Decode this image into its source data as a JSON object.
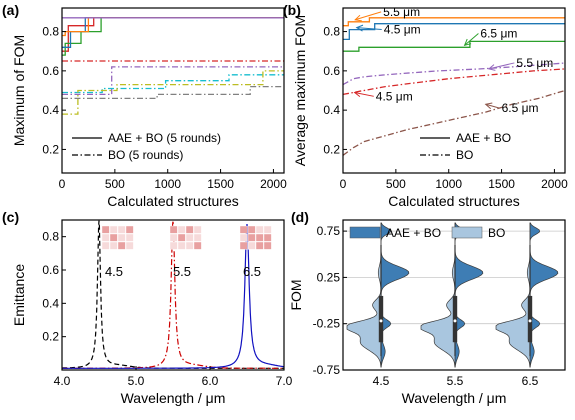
{
  "chart_data": [
    {
      "panel": "(a)",
      "type": "line",
      "ylabel": "Maximum of FOM",
      "xlabel": "Calculated structures",
      "xlim": [
        0,
        2100
      ],
      "ylim": [
        0.08,
        0.92
      ],
      "xticks": [
        0,
        500,
        1000,
        1500,
        2000
      ],
      "yticks": [
        0.2,
        0.4,
        0.6,
        0.8
      ],
      "legend": [
        {
          "label": "AAE + BO (5 rounds)",
          "style": "solid"
        },
        {
          "label": "BO (5 rounds)",
          "style": "dashdot"
        }
      ],
      "series": [
        {
          "color": "#d62728",
          "style": "solid",
          "x": [
            0,
            60,
            60,
            300,
            300,
            2100
          ],
          "y": [
            0.7,
            0.7,
            0.83,
            0.83,
            0.87,
            0.87
          ]
        },
        {
          "color": "#2ca02c",
          "style": "solid",
          "x": [
            0,
            30,
            30,
            180,
            180,
            370,
            370,
            2100
          ],
          "y": [
            0.68,
            0.68,
            0.74,
            0.74,
            0.8,
            0.8,
            0.87,
            0.87
          ]
        },
        {
          "color": "#1f77b4",
          "style": "solid",
          "x": [
            0,
            80,
            80,
            220,
            220,
            2100
          ],
          "y": [
            0.72,
            0.72,
            0.8,
            0.8,
            0.87,
            0.87
          ]
        },
        {
          "color": "#ff7f0e",
          "style": "solid",
          "x": [
            0,
            30,
            30,
            250,
            250,
            2100
          ],
          "y": [
            0.78,
            0.78,
            0.8,
            0.8,
            0.87,
            0.87
          ]
        },
        {
          "color": "#9467bd",
          "style": "solid",
          "x": [
            0,
            2100
          ],
          "y": [
            0.87,
            0.87
          ]
        },
        {
          "color": "#d62728",
          "style": "dashdot",
          "x": [
            0,
            2100
          ],
          "y": [
            0.65,
            0.65
          ]
        },
        {
          "color": "#9467bd",
          "style": "dashdot",
          "x": [
            0,
            470,
            470,
            2100
          ],
          "y": [
            0.48,
            0.48,
            0.62,
            0.62
          ]
        },
        {
          "color": "#17becf",
          "style": "dashdot",
          "x": [
            0,
            380,
            380,
            980,
            980,
            1580,
            1580,
            2100
          ],
          "y": [
            0.49,
            0.49,
            0.51,
            0.51,
            0.55,
            0.55,
            0.58,
            0.58
          ]
        },
        {
          "color": "#bcbd22",
          "style": "dashdot",
          "x": [
            0,
            150,
            150,
            520,
            520,
            1900,
            1900,
            2100
          ],
          "y": [
            0.38,
            0.38,
            0.5,
            0.5,
            0.53,
            0.53,
            0.6,
            0.6
          ]
        },
        {
          "color": "#808080",
          "style": "dashdot",
          "x": [
            0,
            900,
            900,
            1780,
            1780,
            2100
          ],
          "y": [
            0.46,
            0.46,
            0.48,
            0.48,
            0.52,
            0.52
          ]
        }
      ]
    },
    {
      "panel": "(b)",
      "type": "line",
      "ylabel": "Average maximum FOM",
      "xlabel": "Calculated structures",
      "xlim": [
        0,
        2100
      ],
      "ylim": [
        0.08,
        0.92
      ],
      "xticks": [
        0,
        500,
        1000,
        1500,
        2000
      ],
      "yticks": [
        0.2,
        0.4,
        0.6,
        0.8
      ],
      "legend": [
        {
          "label": "AAE + BO",
          "style": "solid"
        },
        {
          "label": "BO",
          "style": "dashdot"
        }
      ],
      "annotations": [
        {
          "text": "5.5 μm",
          "color": "#ff7f0e"
        },
        {
          "text": "4.5 μm",
          "color": "#1f77b4"
        },
        {
          "text": "6.5 μm",
          "color": "#2ca02c"
        },
        {
          "text": "5.5 μm",
          "color": "#9467bd"
        },
        {
          "text": "4.5 μm",
          "color": "#d62728"
        },
        {
          "text": "6.5 μm",
          "color": "#8c564b"
        }
      ],
      "series": [
        {
          "color": "#ff7f0e",
          "style": "solid",
          "x": [
            0,
            50,
            50,
            250,
            250,
            2100
          ],
          "y": [
            0.83,
            0.83,
            0.85,
            0.85,
            0.87,
            0.87
          ]
        },
        {
          "color": "#1f77b4",
          "style": "solid",
          "x": [
            0,
            60,
            60,
            300,
            300,
            2100
          ],
          "y": [
            0.76,
            0.76,
            0.81,
            0.81,
            0.84,
            0.84
          ]
        },
        {
          "color": "#2ca02c",
          "style": "solid",
          "x": [
            0,
            150,
            150,
            1200,
            1200,
            2100
          ],
          "y": [
            0.7,
            0.7,
            0.72,
            0.72,
            0.75,
            0.75
          ]
        },
        {
          "color": "#9467bd",
          "style": "dashdot",
          "x": [
            0,
            100,
            200,
            400,
            650,
            900,
            1300,
            1600,
            2100
          ],
          "y": [
            0.53,
            0.56,
            0.57,
            0.58,
            0.59,
            0.6,
            0.61,
            0.62,
            0.64
          ]
        },
        {
          "color": "#d62728",
          "style": "dashdot",
          "x": [
            0,
            200,
            400,
            700,
            1000,
            1400,
            1800,
            2100
          ],
          "y": [
            0.48,
            0.5,
            0.52,
            0.54,
            0.56,
            0.58,
            0.6,
            0.61
          ]
        },
        {
          "color": "#8c564b",
          "style": "dashdot",
          "x": [
            0,
            100,
            200,
            400,
            600,
            850,
            1100,
            1350,
            1600,
            1850,
            2100
          ],
          "y": [
            0.17,
            0.21,
            0.24,
            0.27,
            0.3,
            0.33,
            0.36,
            0.39,
            0.43,
            0.46,
            0.5
          ]
        }
      ]
    },
    {
      "panel": "(c)",
      "type": "line",
      "ylabel": "Emittance",
      "xlabel": "Wavelength / μm",
      "xlim": [
        4.0,
        7.0
      ],
      "ylim": [
        0.0,
        0.9
      ],
      "xticks": [
        "4.0",
        "5.0",
        "6.0",
        "7.0"
      ],
      "yticks": [
        0.2,
        0.4,
        0.6,
        0.8
      ],
      "inset_labels": [
        "4.5",
        "5.5",
        "6.5"
      ],
      "inset_patterns": [
        [
          [
            1,
            0,
            0,
            1
          ],
          [
            0,
            1,
            0,
            0
          ],
          [
            0,
            0,
            1,
            0
          ]
        ],
        [
          [
            1,
            0,
            1,
            0
          ],
          [
            0,
            1,
            0,
            0
          ],
          [
            0,
            0,
            0,
            1
          ]
        ],
        [
          [
            1,
            1,
            0,
            0
          ],
          [
            0,
            1,
            1,
            1
          ],
          [
            1,
            0,
            1,
            1
          ]
        ]
      ],
      "series": [
        {
          "color": "#000000",
          "style": "dashed",
          "peak": 4.5,
          "height": 0.88,
          "width": 0.025,
          "baseline": 0.01
        },
        {
          "color": "#cc0000",
          "style": "dashdot",
          "peak": 5.5,
          "height": 0.88,
          "width": 0.03,
          "baseline": 0.01
        },
        {
          "color": "#1010c0",
          "style": "solid",
          "peak": 6.5,
          "height": 0.86,
          "width": 0.035,
          "baseline": 0.01
        }
      ]
    },
    {
      "panel": "(d)",
      "type": "violin",
      "ylabel": "FOM",
      "xlabel": "Wavelength / μm",
      "categories": [
        "4.5",
        "5.5",
        "6.5"
      ],
      "ylim": [
        -0.75,
        0.87
      ],
      "yticks": [
        "0.75",
        "0.25",
        "-0.25",
        "-0.75"
      ],
      "ytick_values": [
        0.75,
        0.25,
        -0.25,
        -0.75
      ],
      "legend": [
        {
          "label": "AAE + BO",
          "color": "#3e7db4"
        },
        {
          "label": "BO",
          "color": "#a9c6df"
        }
      ],
      "series": [
        {
          "name": "AAE + BO",
          "side": "right",
          "color": "#3e7db4",
          "peaks": [
            [
              0.75,
              0.05,
              0.35
            ],
            [
              0.3,
              0.1,
              1.0
            ],
            [
              -0.25,
              0.06,
              0.35
            ],
            [
              -0.55,
              0.1,
              0.15
            ]
          ]
        },
        {
          "name": "BO",
          "side": "left",
          "color": "#a9c6df",
          "peaks": [
            [
              -0.28,
              0.08,
              1.0
            ],
            [
              -0.45,
              0.12,
              0.6
            ],
            [
              -0.05,
              0.08,
              0.25
            ],
            [
              0.3,
              0.1,
              0.08
            ]
          ]
        }
      ]
    }
  ]
}
